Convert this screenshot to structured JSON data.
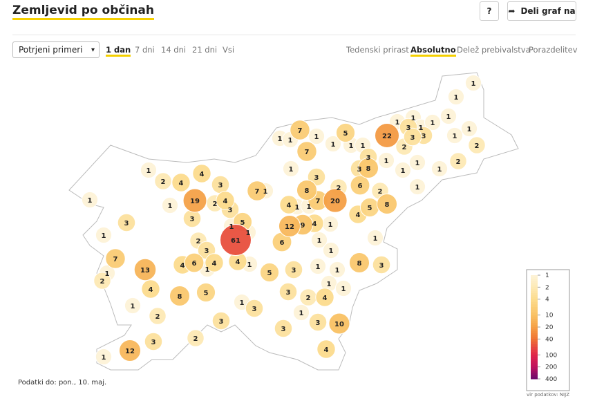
{
  "header": {
    "title": "Zemljevid po občinah",
    "help": "?",
    "share": "Deli graf na"
  },
  "controls": {
    "select": "Potrjeni primeri",
    "periods": [
      "1 dan",
      "7 dni",
      "14 dni",
      "21 dni",
      "Vsi"
    ],
    "active_period": 0,
    "views": [
      "Tedenski prirast",
      "Absolutno",
      "Delež prebivalstva",
      "Porazdelitev"
    ],
    "active_view": 1
  },
  "map": {
    "values": [
      1,
      1,
      1,
      7,
      1,
      1,
      1,
      5,
      1,
      1,
      1,
      22,
      1,
      3,
      1,
      1,
      1,
      3,
      3,
      2,
      1,
      1,
      2,
      2,
      1,
      1,
      1,
      1,
      3,
      3,
      8,
      7,
      1,
      3,
      2,
      6,
      2,
      8,
      8,
      7,
      20,
      5,
      4,
      1,
      1,
      1,
      4,
      9,
      12,
      4,
      1,
      1,
      6,
      1,
      1,
      1,
      1,
      1,
      1,
      8,
      3,
      4,
      2,
      1,
      3,
      10,
      4,
      3,
      3,
      3,
      5,
      1,
      4,
      3,
      1,
      3,
      5,
      4,
      1,
      6,
      4,
      3,
      2,
      61,
      5,
      1,
      1,
      3,
      4,
      2,
      3,
      19,
      3,
      4,
      4,
      2,
      1,
      1,
      1,
      3,
      1,
      7,
      1,
      2,
      13,
      4,
      8,
      1,
      2,
      3,
      2,
      12,
      1,
      7,
      1
    ],
    "legend": {
      "ticks": [
        1,
        2,
        4,
        10,
        20,
        40,
        100,
        200,
        400
      ],
      "colors": [
        "#fdf3d8",
        "#fde9b5",
        "#fcdc8e",
        "#f9c164",
        "#f5a046",
        "#ef7434",
        "#e0254a",
        "#c0115e",
        "#6b0a6c"
      ],
      "source": "vir podatkov: NIJZ"
    }
  },
  "footer": {
    "note": "Podatki do: pon., 10. maj."
  }
}
